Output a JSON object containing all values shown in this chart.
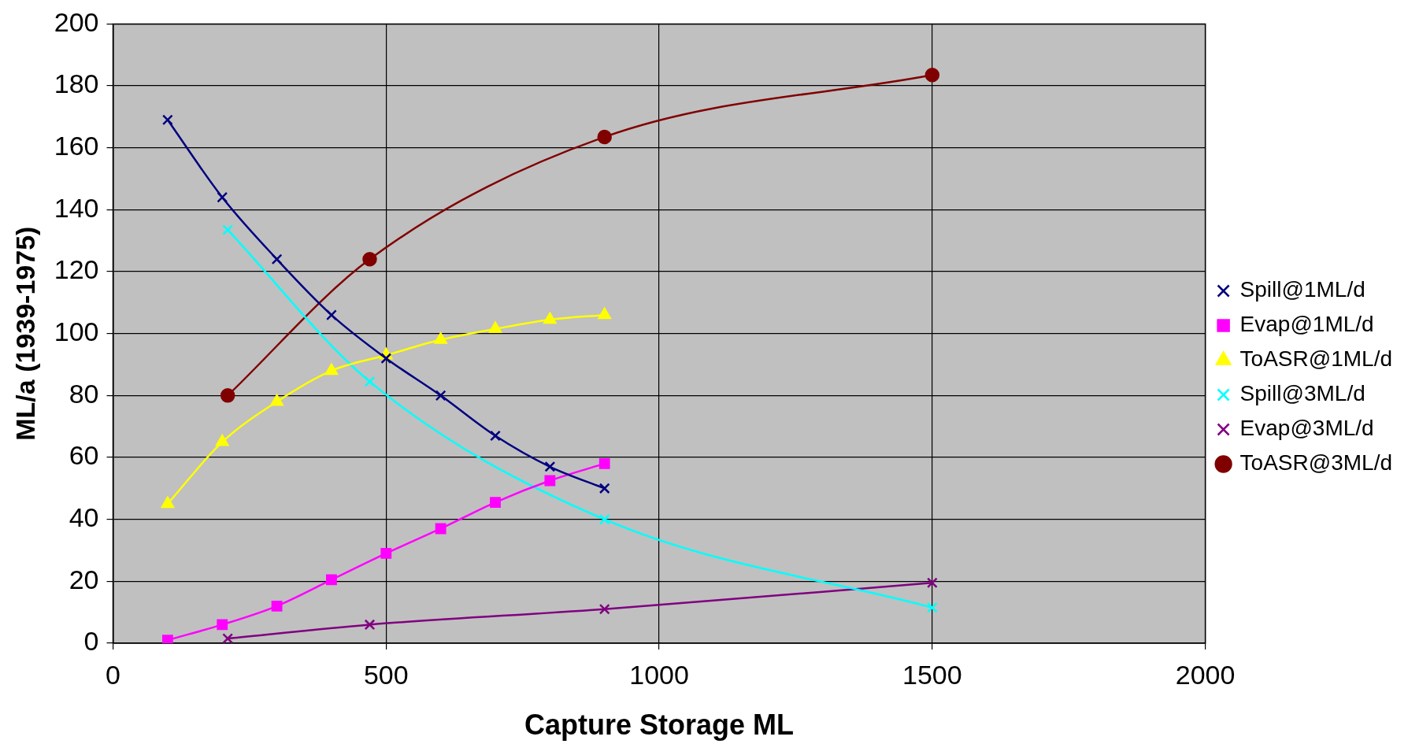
{
  "chart_data": {
    "type": "line",
    "xlabel": "Capture Storage ML",
    "ylabel": "ML/a (1939-1975)",
    "xlim": [
      0,
      2000
    ],
    "xticks": [
      0,
      500,
      1000,
      1500,
      2000
    ],
    "ylim": [
      0,
      200
    ],
    "yticks": [
      0,
      20,
      40,
      60,
      80,
      100,
      120,
      140,
      160,
      180,
      200
    ],
    "grid": true,
    "legend": "right",
    "line_style": "solid",
    "series": [
      {
        "name": "Spill@1ML/d",
        "color": "#000080",
        "marker": "cross",
        "x": [
          100,
          200,
          300,
          400,
          500,
          600,
          700,
          800,
          900
        ],
        "values": [
          169,
          144,
          124,
          106,
          92,
          80,
          67,
          57,
          50
        ]
      },
      {
        "name": "Evap@1ML/d",
        "color": "#ff00ff",
        "marker": "square",
        "x": [
          100,
          200,
          300,
          400,
          500,
          600,
          700,
          800,
          900
        ],
        "values": [
          1,
          6,
          12,
          20.5,
          29,
          37,
          45.5,
          52.5,
          58
        ]
      },
      {
        "name": "ToASR@1ML/d",
        "color": "#ffff00",
        "marker": "triangle",
        "x": [
          100,
          200,
          300,
          400,
          500,
          600,
          700,
          800,
          900
        ],
        "values": [
          45,
          65,
          78,
          88,
          93,
          98,
          101.5,
          104.5,
          106
        ]
      },
      {
        "name": "Spill@3ML/d",
        "color": "#00ffff",
        "marker": "cross",
        "x": [
          210,
          470,
          900,
          1500
        ],
        "values": [
          133.5,
          84.5,
          40,
          11.5
        ]
      },
      {
        "name": "Evap@3ML/d",
        "color": "#800080",
        "marker": "cross",
        "x": [
          210,
          470,
          900,
          1500
        ],
        "values": [
          1.5,
          6,
          11,
          19.5
        ]
      },
      {
        "name": "ToASR@3ML/d",
        "color": "#800000",
        "marker": "circle",
        "x": [
          210,
          470,
          900,
          1500
        ],
        "values": [
          80,
          124,
          163.5,
          183.5
        ]
      }
    ]
  }
}
